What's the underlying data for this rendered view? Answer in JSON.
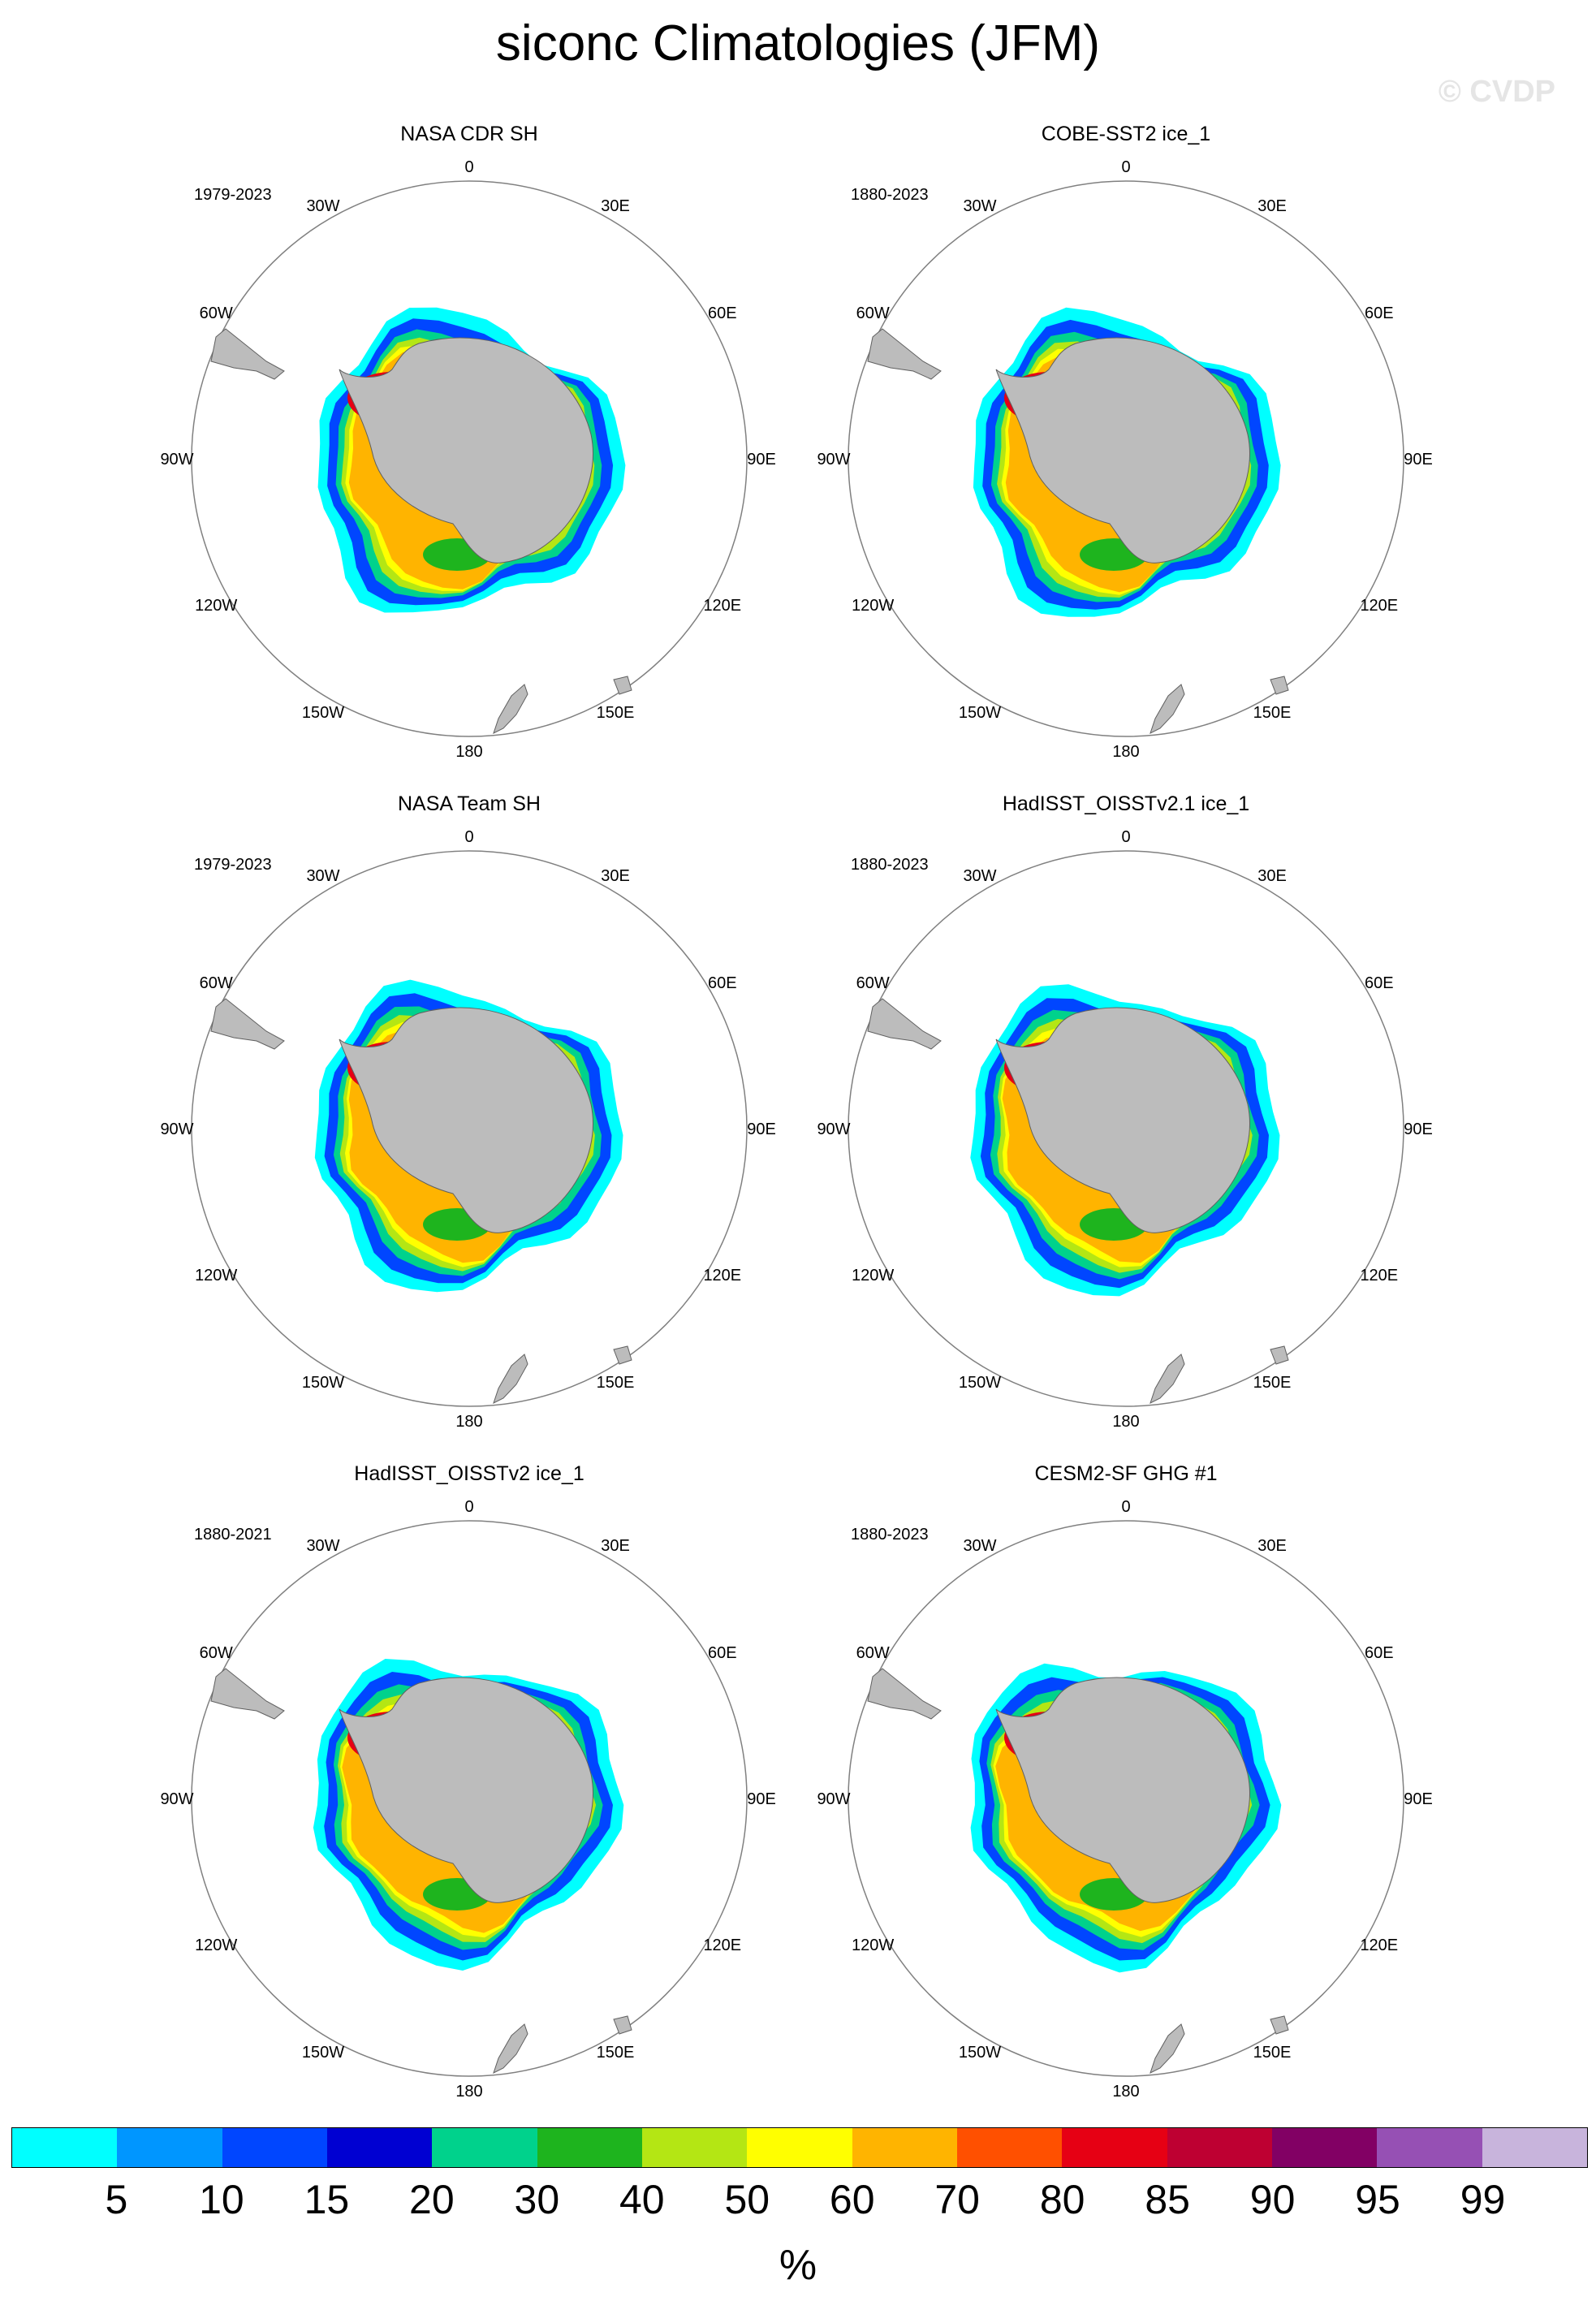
{
  "figure": {
    "title": "siconc Climatologies (JFM)",
    "watermark": "© CVDP"
  },
  "colors": {
    "land": "#bcbcbc",
    "ocean": "#ffffff",
    "frame": "#808080"
  },
  "panels": [
    {
      "title": "NASA CDR SH",
      "period": "1979-2023"
    },
    {
      "title": "COBE-SST2 ice_1",
      "period": "1880-2023"
    },
    {
      "title": "NASA Team SH",
      "period": "1979-2023"
    },
    {
      "title": "HadISST_OISSTv2.1 ice_1",
      "period": "1880-2023"
    },
    {
      "title": "HadISST_OISSTv2 ice_1",
      "period": "1880-2021"
    },
    {
      "title": "CESM2-SF GHG #1",
      "period": "1880-2023"
    }
  ],
  "lon_labels": [
    "0",
    "30E",
    "60E",
    "90E",
    "120E",
    "150E",
    "180",
    "150W",
    "120W",
    "90W",
    "60W",
    "30W"
  ],
  "colorbar": {
    "colors": [
      "#00ffff",
      "#0096ff",
      "#0046ff",
      "#0000d2",
      "#00d28c",
      "#1eb41e",
      "#b4e614",
      "#ffff00",
      "#ffb400",
      "#ff5000",
      "#e60014",
      "#be0032",
      "#820064",
      "#9650b4",
      "#c8b4dc"
    ],
    "labels": [
      "5",
      "10",
      "15",
      "20",
      "30",
      "40",
      "50",
      "60",
      "70",
      "80",
      "85",
      "90",
      "95",
      "99"
    ],
    "unit": "%"
  }
}
